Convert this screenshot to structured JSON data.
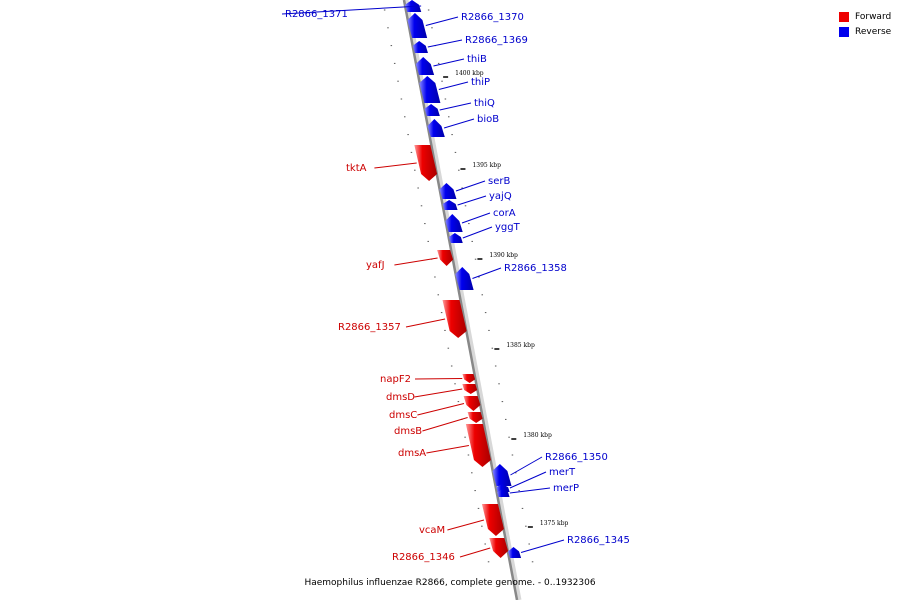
{
  "caption": "Haemophilus influenzae R2866, complete genome. - 0..1932306",
  "legend": [
    {
      "label": "Forward",
      "color": "#ee0000"
    },
    {
      "label": "Reverse",
      "color": "#0000ee"
    }
  ],
  "colors": {
    "forward": "#ee0000",
    "reverse": "#0000ee",
    "forward_label": "#cc0000",
    "reverse_label": "#0000cc",
    "backbone": "#888888"
  },
  "ticks": [
    "1400 kbp",
    "1395 kbp",
    "1390 kbp",
    "1385 kbp",
    "1380 kbp",
    "1375 kbp"
  ],
  "genes": [
    {
      "name": "R2866_1371",
      "strand": "reverse"
    },
    {
      "name": "R2866_1370",
      "strand": "reverse"
    },
    {
      "name": "R2866_1369",
      "strand": "reverse"
    },
    {
      "name": "thiB",
      "strand": "reverse"
    },
    {
      "name": "thiP",
      "strand": "reverse"
    },
    {
      "name": "thiQ",
      "strand": "reverse"
    },
    {
      "name": "bioB",
      "strand": "reverse"
    },
    {
      "name": "tktA",
      "strand": "forward"
    },
    {
      "name": "serB",
      "strand": "reverse"
    },
    {
      "name": "yajQ",
      "strand": "reverse"
    },
    {
      "name": "corA",
      "strand": "reverse"
    },
    {
      "name": "yggT",
      "strand": "reverse"
    },
    {
      "name": "yafJ",
      "strand": "forward"
    },
    {
      "name": "R2866_1358",
      "strand": "reverse"
    },
    {
      "name": "R2866_1357",
      "strand": "forward"
    },
    {
      "name": "napF2",
      "strand": "forward"
    },
    {
      "name": "dmsD",
      "strand": "forward"
    },
    {
      "name": "dmsC",
      "strand": "forward"
    },
    {
      "name": "dmsB",
      "strand": "forward"
    },
    {
      "name": "dmsA",
      "strand": "forward"
    },
    {
      "name": "R2866_1350",
      "strand": "reverse"
    },
    {
      "name": "merT",
      "strand": "reverse"
    },
    {
      "name": "merP",
      "strand": "reverse"
    },
    {
      "name": "vcaM",
      "strand": "forward"
    },
    {
      "name": "R2866_1346",
      "strand": "forward"
    },
    {
      "name": "R2866_1345",
      "strand": "reverse"
    }
  ]
}
